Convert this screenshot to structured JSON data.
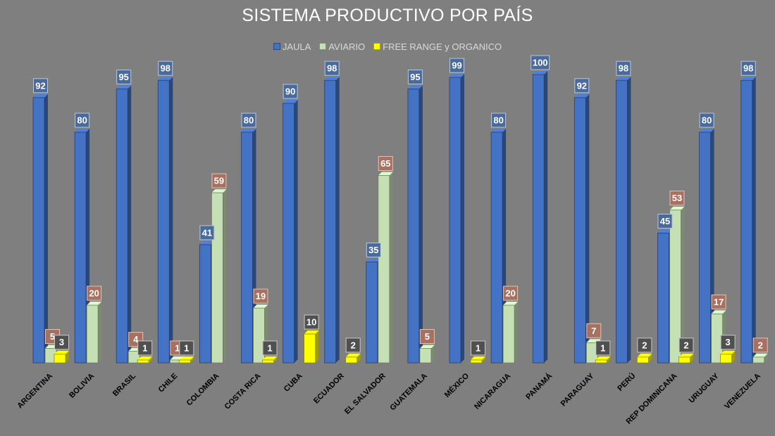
{
  "chart_data": {
    "type": "bar",
    "title": "SISTEMA PRODUCTIVO POR PAÍS",
    "categories": [
      "ARGENTINA",
      "BOLIVIA",
      "BRASIL",
      "CHILE",
      "COLOMBIA",
      "COSTA RICA",
      "CUBA",
      "ECUADOR",
      "EL SALVADOR",
      "GUATEMALA",
      "MÉXICO",
      "NICARAGUA",
      "PANAMÁ",
      "PARAGUAY",
      "PERÚ",
      "REP DOMINICANA",
      "URUGUAY",
      "VENEZUELA"
    ],
    "series": [
      {
        "name": "JAULA",
        "color": "#4472c4",
        "values": [
          92,
          80,
          95,
          98,
          41,
          80,
          90,
          98,
          35,
          95,
          99,
          80,
          100,
          92,
          98,
          45,
          80,
          98
        ]
      },
      {
        "name": "AVIARIO",
        "color": "#c5e0b4",
        "values": [
          5,
          20,
          4,
          1,
          59,
          19,
          null,
          null,
          65,
          5,
          null,
          20,
          null,
          7,
          null,
          53,
          17,
          2
        ]
      },
      {
        "name": "FREE RANGE y ORGANICO",
        "color": "#ffff00",
        "values": [
          3,
          null,
          1,
          1,
          null,
          1,
          10,
          2,
          null,
          null,
          1,
          null,
          null,
          1,
          2,
          2,
          3,
          null
        ]
      }
    ],
    "ylim": [
      0,
      100
    ],
    "legend_position": "top",
    "grid": false,
    "data_labels": true
  }
}
